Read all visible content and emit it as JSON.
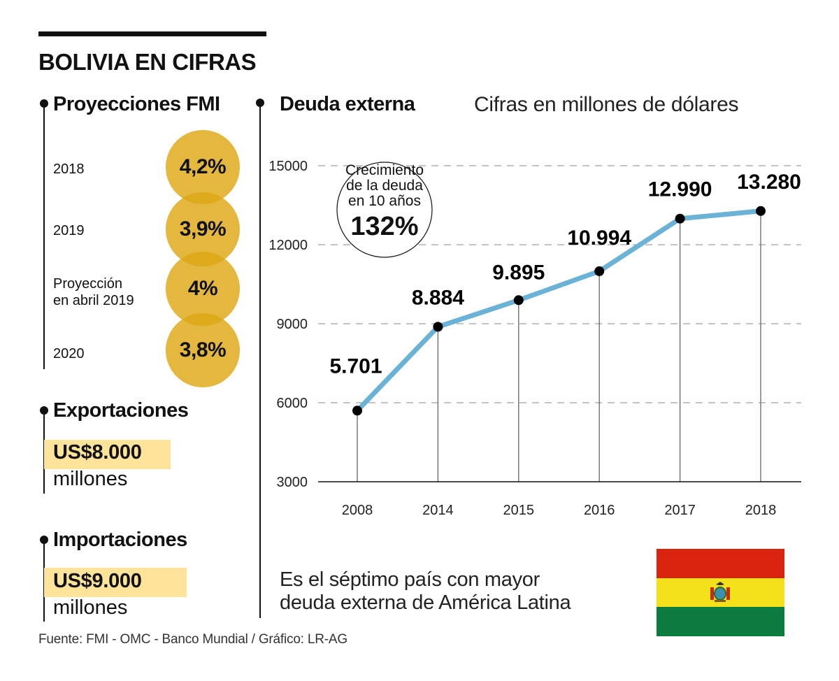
{
  "header": {
    "title": "BOLIVIA EN CIFRAS"
  },
  "projections": {
    "title": "Proyecciones FMI",
    "items": [
      {
        "label": "2018",
        "value": "4,2%"
      },
      {
        "label": "2019",
        "value": "3,9%"
      },
      {
        "label": "Proyección en abril 2019",
        "label_lines": [
          "Proyección",
          "en abril 2019"
        ],
        "value": "4%"
      },
      {
        "label": "2020",
        "value": "3,8%"
      }
    ]
  },
  "exports": {
    "title": "Exportaciones",
    "amount": "US$8.000",
    "unit": "millones"
  },
  "imports": {
    "title": "Importaciones",
    "amount": "US$9.000",
    "unit": "millones"
  },
  "debt_section": {
    "title": "Deuda externa",
    "subtitle": "Cifras en millones de dólares",
    "callout": {
      "lines": [
        "Crecimiento",
        "de la deuda",
        "en 10 años"
      ],
      "value": "132%"
    },
    "note_lines": [
      "Es el séptimo país con mayor",
      "deuda externa de América Latina"
    ]
  },
  "flag": {
    "country": "Bolivia",
    "colors": [
      "#d9230f",
      "#f4e11a",
      "#0b7c3e"
    ]
  },
  "footer": {
    "source": "Fuente: FMI - OMC - Banco Mundial / Gráfico: LR-AG"
  },
  "colors": {
    "line": "#6ab2d6",
    "circle": "#dea714",
    "highlight": "#fde49a"
  },
  "chart_data": {
    "type": "line",
    "title": "Deuda externa",
    "subtitle": "Cifras en millones de dólares",
    "xlabel": "",
    "ylabel": "",
    "categories": [
      "2008",
      "2014",
      "2015",
      "2016",
      "2017",
      "2018"
    ],
    "series": [
      {
        "name": "Deuda externa",
        "values": [
          5701,
          8884,
          9895,
          10994,
          12990,
          13280
        ]
      }
    ],
    "data_labels": [
      "5.701",
      "8.884",
      "9.895",
      "10.994",
      "12.990",
      "13.280"
    ],
    "yticks": [
      3000,
      6000,
      9000,
      12000,
      15000
    ],
    "ytick_labels": [
      "3000",
      "6000",
      "9000",
      "12000",
      "15000"
    ],
    "ylim": [
      3000,
      15000
    ],
    "grid": "horizontal dashed",
    "legend": "none"
  }
}
